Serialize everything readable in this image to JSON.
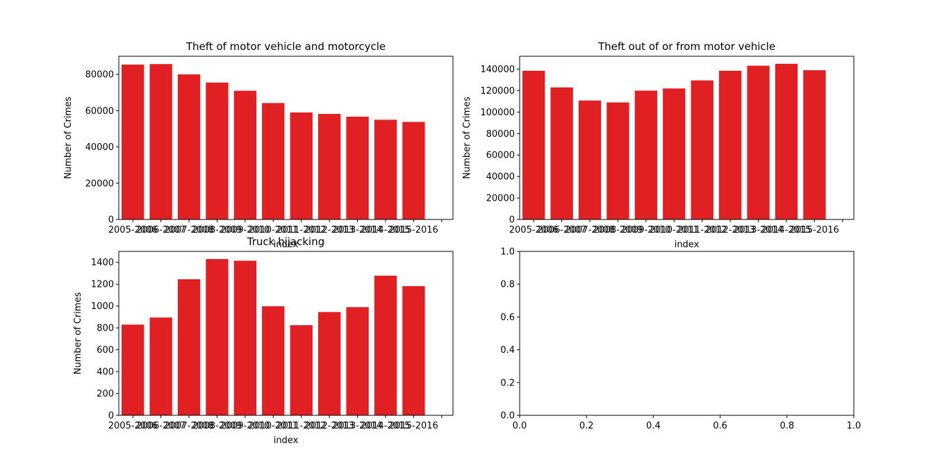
{
  "chart_data": [
    {
      "type": "bar",
      "title": "Theft of motor vehicle and motorcycle",
      "xlabel": "index",
      "ylabel": "Number of Crimes",
      "categories": [
        "2005-2006",
        "2006-2007",
        "2007-2008",
        "2008-2009",
        "2009-2010",
        "2010-2011",
        "2011-2012",
        "2012-2013",
        "2013-2014",
        "2014-2015",
        "2015-2016"
      ],
      "values": [
        85400,
        85700,
        80000,
        75500,
        71000,
        64200,
        59000,
        58200,
        56700,
        55000,
        53800
      ],
      "ylim": [
        0,
        90000
      ],
      "yticks": [
        "0",
        "20000",
        "40000",
        "60000",
        "80000"
      ],
      "ytick_values": [
        0,
        20000,
        40000,
        60000,
        80000
      ],
      "color": "#e02022"
    },
    {
      "type": "bar",
      "title": "Theft out of or from motor vehicle",
      "xlabel": "index",
      "ylabel": "Number of Crimes",
      "categories": [
        "2005-2006",
        "2006-2007",
        "2007-2008",
        "2008-2009",
        "2009-2010",
        "2010-2011",
        "2011-2012",
        "2012-2013",
        "2013-2014",
        "2014-2015",
        "2015-2016"
      ],
      "values": [
        138500,
        123000,
        110800,
        109000,
        120000,
        122000,
        129500,
        138500,
        143200,
        145000,
        139000
      ],
      "ylim": [
        0,
        152000
      ],
      "yticks": [
        "0",
        "20000",
        "40000",
        "60000",
        "80000",
        "100000",
        "120000",
        "140000"
      ],
      "ytick_values": [
        0,
        20000,
        40000,
        60000,
        80000,
        100000,
        120000,
        140000
      ],
      "color": "#e02022"
    },
    {
      "type": "bar",
      "title": "Truck hijacking",
      "xlabel": "index",
      "ylabel": "Number of Crimes",
      "categories": [
        "2005-2006",
        "2006-2007",
        "2007-2008",
        "2008-2009",
        "2009-2010",
        "2010-2011",
        "2011-2012",
        "2012-2013",
        "2013-2014",
        "2014-2015",
        "2015-2016"
      ],
      "values": [
        830,
        895,
        1245,
        1430,
        1415,
        998,
        825,
        945,
        990,
        1278,
        1182
      ],
      "ylim": [
        0,
        1500
      ],
      "yticks": [
        "0",
        "200",
        "400",
        "600",
        "800",
        "1000",
        "1200",
        "1400"
      ],
      "ytick_values": [
        0,
        200,
        400,
        600,
        800,
        1000,
        1200,
        1400
      ],
      "color": "#e02022"
    },
    {
      "type": "empty",
      "title": "",
      "xlabel": "",
      "ylabel": "",
      "xlim": [
        0,
        1
      ],
      "ylim": [
        0,
        1
      ],
      "xticks": [
        "0.0",
        "0.2",
        "0.4",
        "0.6",
        "0.8",
        "1.0"
      ],
      "yticks": [
        "0.0",
        "0.2",
        "0.4",
        "0.6",
        "0.8",
        "1.0"
      ],
      "tick_values": [
        0,
        0.2,
        0.4,
        0.6,
        0.8,
        1.0
      ]
    }
  ]
}
